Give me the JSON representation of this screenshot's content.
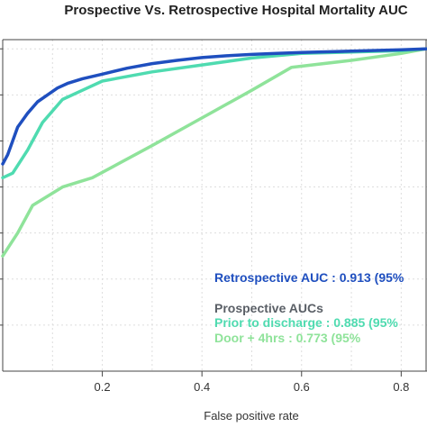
{
  "chart_data": {
    "type": "line",
    "title": "Prospective Vs. Retrospective Hospital Mortality AUC",
    "xlabel": "False positive rate",
    "ylabel": "",
    "xlim": [
      0,
      0.85
    ],
    "ylim": [
      0.3,
      1.02
    ],
    "x_ticks": [
      0.2,
      0.4,
      0.6,
      0.8
    ],
    "x_tick_labels": [
      "0.2",
      "0.4",
      "0.6",
      "0.8"
    ],
    "grid": true,
    "series": [
      {
        "name": "Retrospective AUC : 0.913 (95%",
        "color": "#1f4fbf",
        "x": [
          0,
          0.01,
          0.02,
          0.03,
          0.05,
          0.07,
          0.09,
          0.11,
          0.13,
          0.16,
          0.2,
          0.25,
          0.3,
          0.35,
          0.4,
          0.45,
          0.5,
          0.55,
          0.6,
          0.7,
          0.8,
          0.85
        ],
        "y": [
          0.75,
          0.77,
          0.8,
          0.83,
          0.86,
          0.885,
          0.9,
          0.915,
          0.925,
          0.935,
          0.945,
          0.958,
          0.968,
          0.975,
          0.981,
          0.985,
          0.988,
          0.99,
          0.992,
          0.995,
          0.998,
          1.0
        ]
      },
      {
        "name": "Prior to discharge : 0.885 (95%",
        "color": "#4fdbb0",
        "x": [
          0,
          0.02,
          0.05,
          0.08,
          0.12,
          0.16,
          0.2,
          0.3,
          0.4,
          0.5,
          0.6,
          0.7,
          0.8,
          0.85
        ],
        "y": [
          0.72,
          0.73,
          0.78,
          0.84,
          0.89,
          0.91,
          0.93,
          0.95,
          0.965,
          0.98,
          0.99,
          0.993,
          0.996,
          1.0
        ]
      },
      {
        "name": "Door + 4hrs : 0.773 (95%",
        "color": "#8fe39a",
        "x": [
          0,
          0.03,
          0.06,
          0.12,
          0.18,
          0.3,
          0.4,
          0.5,
          0.58,
          0.7,
          0.8,
          0.85
        ],
        "y": [
          0.55,
          0.6,
          0.66,
          0.7,
          0.72,
          0.79,
          0.85,
          0.91,
          0.96,
          0.975,
          0.99,
          1.0
        ]
      }
    ],
    "annotations": {
      "retrospective": "Retrospective AUC : 0.913 (95%",
      "prospective_header": "Prospective AUCs",
      "prior": "Prior to discharge : 0.885 (95%",
      "door": "Door + 4hrs : 0.773 (95%"
    },
    "colors": {
      "retrospective": "#1f4fbf",
      "header": "#5a5f66",
      "prior": "#4fdbb0",
      "door": "#8fe39a",
      "grid": "#dddddd",
      "axis": "#444444"
    }
  }
}
